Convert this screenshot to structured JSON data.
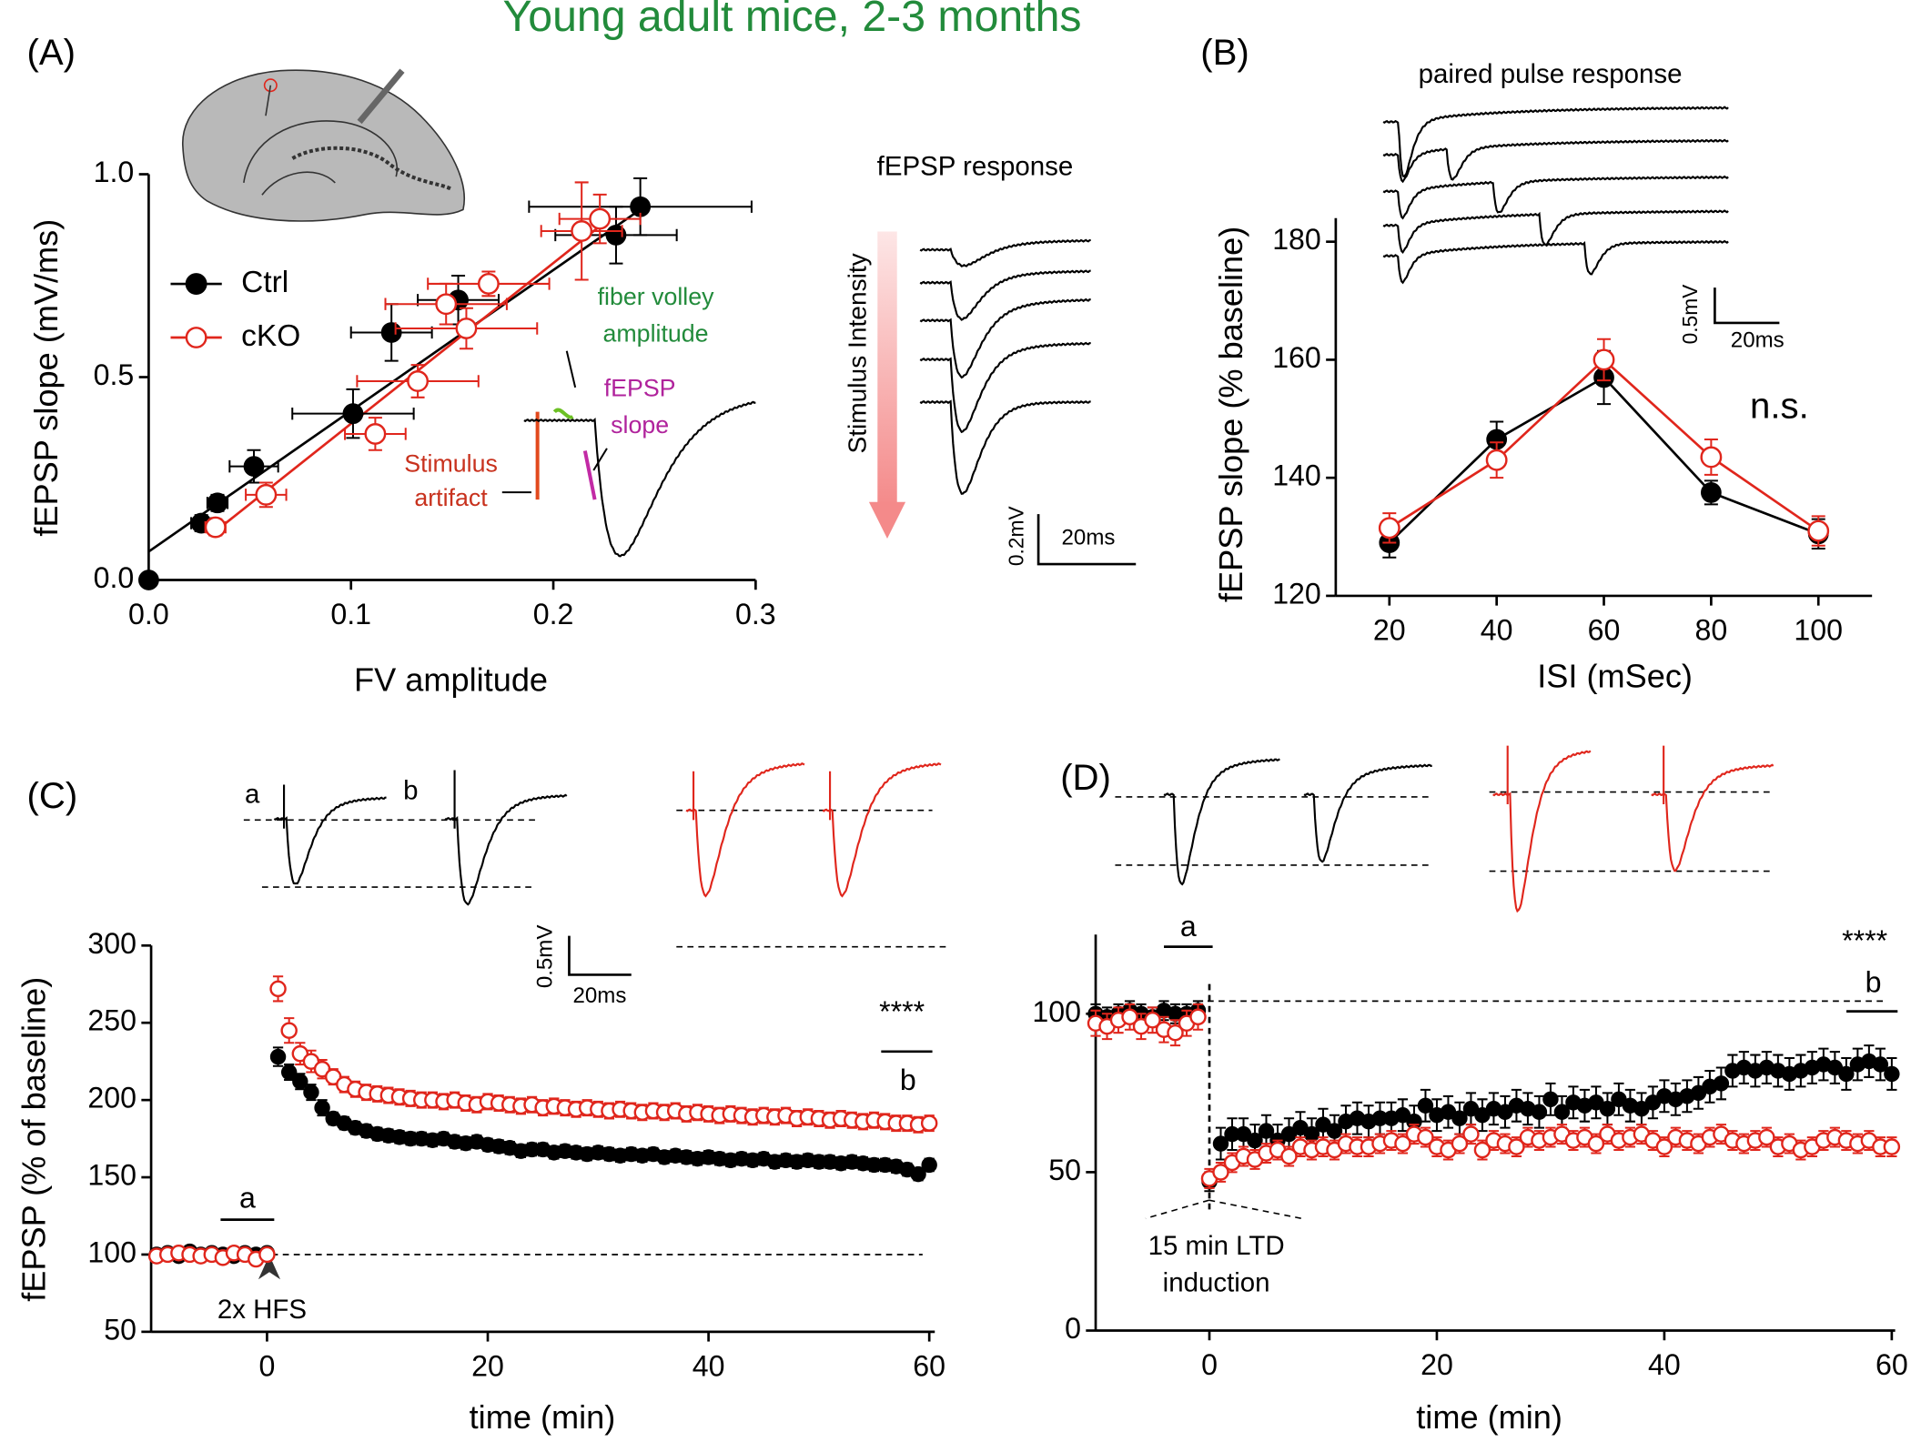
{
  "title": "Young adult mice, 2-3 months",
  "chart_data": [
    {
      "type": "scatter",
      "panel_label": "(A)",
      "x_label": "FV amplitude",
      "y_label": "fEPSP slope (mV/ms)",
      "xlim": [
        0,
        0.3
      ],
      "ylim": [
        0,
        1.0
      ],
      "xticks": [
        {
          "value": 0,
          "label": "0.0"
        },
        0.1,
        0.2,
        0.3
      ],
      "yticks": [
        {
          "value": 0,
          "label": "0.0"
        },
        0.5,
        {
          "value": 1,
          "label": "1.0"
        }
      ],
      "legend": "upper left",
      "series": [
        {
          "name": "Ctrl",
          "color": "#000000",
          "marker": "filled",
          "x": [
            0,
            0.026,
            0.034,
            0.052,
            0.101,
            0.12,
            0.153,
            0.231,
            0.243
          ],
          "values": [
            0,
            0.14,
            0.19,
            0.28,
            0.41,
            0.61,
            0.69,
            0.85,
            0.92
          ],
          "x_errors": [
            null,
            0.005,
            0.005,
            0.012,
            0.03,
            0.02,
            0.02,
            0.03,
            0.055
          ],
          "errors": [
            null,
            0.02,
            0.02,
            0.04,
            0.06,
            0.07,
            0.06,
            0.07,
            0.07
          ],
          "fit": {
            "x": [
              0,
              0.245
            ],
            "y": [
              0.07,
              0.92
            ]
          }
        },
        {
          "name": "cKO",
          "color": "#e0261c",
          "marker": "open",
          "x": [
            0.033,
            0.058,
            0.112,
            0.133,
            0.147,
            0.157,
            0.168,
            0.214,
            0.223
          ],
          "values": [
            0.13,
            0.21,
            0.36,
            0.49,
            0.68,
            0.62,
            0.73,
            0.86,
            0.89
          ],
          "x_errors": [
            0.005,
            0.01,
            0.015,
            0.03,
            0.03,
            0.035,
            0.03,
            0.02,
            0.02
          ],
          "errors": [
            0.02,
            0.03,
            0.04,
            0.04,
            0.05,
            0.05,
            0.03,
            0.12,
            0.06
          ],
          "fit": {
            "x": [
              0.033,
              0.225
            ],
            "y": [
              0.12,
              0.88
            ]
          }
        }
      ],
      "annotations": [
        "fEPSP response",
        "Stimulus Intensity",
        "0.2mV",
        "20ms",
        "fiber volley",
        "amplitude",
        "fEPSP",
        "slope",
        "Stimulus",
        "artifact"
      ]
    },
    {
      "type": "line",
      "panel_label": "(B)",
      "x_label": "ISI (mSec)",
      "y_label": "fEPSP slope  (% baseline)",
      "xlim": [
        10,
        110
      ],
      "ylim": [
        120,
        184
      ],
      "xticks": [
        20,
        40,
        60,
        80,
        100
      ],
      "yticks": [
        120,
        140,
        160,
        180
      ],
      "x": [
        20,
        40,
        60,
        80,
        100
      ],
      "series": [
        {
          "color": "#000000",
          "marker": "filled",
          "values": [
            129,
            146.5,
            157,
            137.5,
            130.5
          ],
          "errors": [
            2.5,
            3,
            4.5,
            2,
            2.5
          ]
        },
        {
          "color": "#e0261c",
          "marker": "open",
          "values": [
            131.5,
            143,
            160,
            143.5,
            131
          ],
          "errors": [
            2.5,
            3,
            3.5,
            3,
            2.5
          ]
        }
      ],
      "annotations": [
        "paired pulse response",
        "n.s.",
        "0.5mV",
        "20ms"
      ]
    },
    {
      "type": "scatter",
      "panel_label": "(C)",
      "x_label": "time (min)",
      "y_label": "fEPSP (% of baseline)",
      "xlim": [
        -10.5,
        60.5
      ],
      "ylim": [
        50,
        300
      ],
      "xticks": [
        0,
        20,
        40,
        60
      ],
      "yticks": [
        50,
        100,
        150,
        200,
        250,
        300
      ],
      "hline": 100,
      "x": [
        -10,
        -9,
        -8,
        -7,
        -6,
        -5,
        -4,
        -3,
        -2,
        -1,
        0,
        1,
        2,
        3,
        4,
        5,
        6,
        7,
        8,
        9,
        10,
        11,
        12,
        13,
        14,
        15,
        16,
        17,
        18,
        19,
        20,
        21,
        22,
        23,
        24,
        25,
        26,
        27,
        28,
        29,
        30,
        31,
        32,
        33,
        34,
        35,
        36,
        37,
        38,
        39,
        40,
        41,
        42,
        43,
        44,
        45,
        46,
        47,
        48,
        49,
        50,
        51,
        52,
        53,
        54,
        55,
        56,
        57,
        58,
        59,
        60
      ],
      "series": [
        {
          "color": "#000000",
          "marker": "filled",
          "values": [
            100,
            101,
            99,
            102,
            100,
            101,
            100,
            99,
            101,
            100,
            101,
            228,
            218,
            212,
            205,
            195,
            188,
            185,
            182,
            180,
            178,
            177,
            176,
            175,
            175,
            174,
            175,
            173,
            172,
            173,
            171,
            170,
            169,
            167,
            168,
            168,
            166,
            167,
            166,
            165,
            166,
            165,
            164,
            165,
            164,
            165,
            163,
            164,
            163,
            162,
            163,
            162,
            161,
            162,
            161,
            162,
            160,
            161,
            160,
            161,
            160,
            160,
            159,
            160,
            159,
            158,
            158,
            157,
            155,
            152,
            158
          ],
          "errors": [
            2,
            2,
            2,
            2,
            2,
            2,
            2,
            2,
            2,
            2,
            2,
            6,
            5,
            5,
            5,
            5,
            4,
            4,
            4,
            4,
            4,
            4,
            4,
            4,
            4,
            4,
            4,
            4,
            4,
            4,
            4,
            4,
            4,
            4,
            4,
            4,
            4,
            4,
            4,
            4,
            4,
            4,
            4,
            4,
            4,
            4,
            4,
            4,
            4,
            4,
            4,
            4,
            4,
            4,
            4,
            4,
            4,
            4,
            4,
            4,
            4,
            4,
            4,
            4,
            4,
            4,
            4,
            4,
            4,
            4,
            4
          ]
        },
        {
          "color": "#e0261c",
          "marker": "open",
          "values": [
            99,
            100,
            101,
            100,
            99,
            100,
            98,
            101,
            100,
            97,
            100,
            272,
            245,
            230,
            225,
            220,
            215,
            210,
            207,
            205,
            204,
            203,
            202,
            201,
            200,
            200,
            199,
            200,
            198,
            197,
            199,
            198,
            197,
            196,
            197,
            195,
            196,
            195,
            194,
            195,
            194,
            193,
            194,
            193,
            192,
            193,
            192,
            193,
            191,
            192,
            191,
            190,
            191,
            190,
            189,
            190,
            189,
            190,
            188,
            189,
            188,
            187,
            188,
            187,
            186,
            187,
            186,
            185,
            185,
            184,
            185
          ],
          "errors": [
            3,
            3,
            3,
            3,
            3,
            3,
            3,
            3,
            3,
            3,
            3,
            8,
            8,
            7,
            7,
            6,
            5,
            5,
            5,
            5,
            5,
            5,
            5,
            5,
            5,
            5,
            5,
            5,
            5,
            5,
            5,
            5,
            5,
            5,
            5,
            5,
            5,
            5,
            5,
            5,
            5,
            5,
            5,
            5,
            5,
            5,
            5,
            5,
            5,
            5,
            5,
            5,
            5,
            5,
            5,
            5,
            5,
            5,
            5,
            5,
            5,
            5,
            5,
            5,
            5,
            5,
            5,
            5,
            5,
            5,
            5
          ]
        }
      ],
      "annotations": [
        "a",
        "b",
        "a",
        "b",
        "****",
        "2x HFS",
        "0.5mV",
        "20ms"
      ]
    },
    {
      "type": "scatter",
      "panel_label": "(D)",
      "x_label": "time (min)",
      "xlim": [
        -10,
        60.3
      ],
      "ylim": [
        0,
        125
      ],
      "xticks": [
        0,
        20,
        40,
        60
      ],
      "yticks": [
        0,
        50,
        100
      ],
      "hline": 104,
      "vline": 0,
      "x": [
        -10,
        -9,
        -8,
        -7,
        -6,
        -5,
        -4,
        -3,
        -2,
        -1,
        0,
        1,
        2,
        3,
        4,
        5,
        6,
        7,
        8,
        9,
        10,
        11,
        12,
        13,
        14,
        15,
        16,
        17,
        18,
        19,
        20,
        21,
        22,
        23,
        24,
        25,
        26,
        27,
        28,
        29,
        30,
        31,
        32,
        33,
        34,
        35,
        36,
        37,
        38,
        39,
        40,
        41,
        42,
        43,
        44,
        45,
        46,
        47,
        48,
        49,
        50,
        51,
        52,
        53,
        54,
        55,
        56,
        57,
        58,
        59,
        60
      ],
      "series": [
        {
          "color": "#000000",
          "marker": "filled",
          "values": [
            100,
            99,
            100,
            101,
            100,
            99,
            101,
            100,
            100,
            101,
            47,
            59,
            62,
            62,
            60,
            63,
            60,
            62,
            64,
            62,
            65,
            63,
            66,
            67,
            66,
            67,
            67,
            68,
            66,
            71,
            68,
            69,
            67,
            70,
            68,
            70,
            69,
            71,
            70,
            69,
            73,
            69,
            72,
            71,
            72,
            70,
            73,
            71,
            70,
            72,
            74,
            73,
            74,
            75,
            77,
            78,
            82,
            83,
            82,
            83,
            82,
            81,
            82,
            83,
            84,
            83,
            81,
            84,
            85,
            84,
            81
          ],
          "errors": [
            3,
            3,
            3,
            3,
            3,
            3,
            3,
            3,
            3,
            3,
            3,
            5,
            5,
            5,
            5,
            5,
            5,
            5,
            5,
            5,
            5,
            5,
            5,
            5,
            5,
            5,
            5,
            5,
            5,
            5,
            5,
            5,
            5,
            5,
            5,
            5,
            5,
            5,
            5,
            5,
            5,
            5,
            5,
            5,
            5,
            5,
            5,
            5,
            5,
            5,
            5,
            5,
            5,
            5,
            5,
            5,
            5,
            5,
            5,
            5,
            5,
            5,
            5,
            5,
            5,
            5,
            5,
            5,
            5,
            5,
            5
          ]
        },
        {
          "color": "#e0261c",
          "marker": "open",
          "values": [
            97,
            96,
            98,
            99,
            96,
            98,
            95,
            94,
            97,
            99,
            48,
            50,
            53,
            55,
            54,
            56,
            57,
            55,
            58,
            57,
            58,
            57,
            59,
            58,
            58,
            59,
            60,
            59,
            62,
            61,
            58,
            57,
            59,
            62,
            57,
            60,
            59,
            58,
            61,
            60,
            61,
            62,
            60,
            61,
            59,
            62,
            60,
            61,
            62,
            60,
            58,
            61,
            60,
            59,
            61,
            62,
            60,
            59,
            60,
            61,
            58,
            59,
            57,
            58,
            60,
            61,
            60,
            59,
            60,
            58,
            58
          ],
          "errors": [
            4,
            4,
            4,
            4,
            4,
            4,
            4,
            4,
            4,
            4,
            3,
            3,
            3,
            3,
            3,
            3,
            3,
            3,
            3,
            3,
            3,
            3,
            3,
            3,
            3,
            3,
            3,
            3,
            3,
            3,
            3,
            3,
            3,
            3,
            3,
            3,
            3,
            3,
            3,
            3,
            3,
            3,
            3,
            3,
            3,
            3,
            3,
            3,
            3,
            3,
            3,
            3,
            3,
            3,
            3,
            3,
            3,
            3,
            3,
            3,
            3,
            3,
            3,
            3,
            3,
            3,
            3,
            3,
            3,
            3,
            3
          ]
        }
      ],
      "annotations": [
        "a",
        "b",
        "****",
        "15 min LTD",
        "induction"
      ]
    }
  ]
}
